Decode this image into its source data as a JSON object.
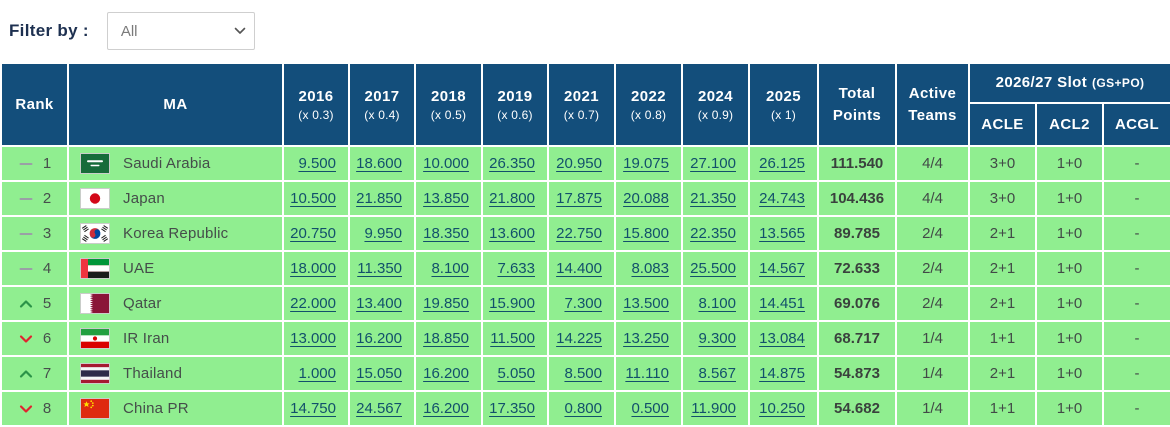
{
  "filter": {
    "label": "Filter by :",
    "selected": "All",
    "options": [
      "All"
    ]
  },
  "colors": {
    "header_bg": "#134E7B",
    "row_bg": "#90EE90",
    "score_link": "#12506B",
    "trend_up": "#2B9348",
    "trend_down": "#E0242F",
    "trend_same": "#9AA0A6"
  },
  "table": {
    "headers": {
      "rank": "Rank",
      "ma": "MA",
      "years": [
        {
          "year": "2016",
          "mult": "(x 0.3)"
        },
        {
          "year": "2017",
          "mult": "(x 0.4)"
        },
        {
          "year": "2018",
          "mult": "(x 0.5)"
        },
        {
          "year": "2019",
          "mult": "(x 0.6)"
        },
        {
          "year": "2021",
          "mult": "(x 0.7)"
        },
        {
          "year": "2022",
          "mult": "(x 0.8)"
        },
        {
          "year": "2024",
          "mult": "(x 0.9)"
        },
        {
          "year": "2025",
          "mult": "(x 1)"
        }
      ],
      "total": "Total Points",
      "active": "Active Teams",
      "slot_title": "2026/27 Slot",
      "slot_sub": "(GS+PO)",
      "slot_cols": [
        "ACLE",
        "ACL2",
        "ACGL"
      ]
    },
    "rows": [
      {
        "trend": "same",
        "rank": "1",
        "country": "Saudi Arabia",
        "flag": "saudi-arabia",
        "scores": [
          "9.500",
          "18.600",
          "10.000",
          "26.350",
          "20.950",
          "19.075",
          "27.100",
          "26.125"
        ],
        "total": "111.540",
        "active": "4/4",
        "acle": "3+0",
        "acl2": "1+0",
        "acgl": "-"
      },
      {
        "trend": "same",
        "rank": "2",
        "country": "Japan",
        "flag": "japan",
        "scores": [
          "10.500",
          "21.850",
          "13.850",
          "21.800",
          "17.875",
          "20.088",
          "21.350",
          "24.743"
        ],
        "total": "104.436",
        "active": "4/4",
        "acle": "3+0",
        "acl2": "1+0",
        "acgl": "-"
      },
      {
        "trend": "same",
        "rank": "3",
        "country": "Korea Republic",
        "flag": "korea-republic",
        "scores": [
          "20.750",
          "9.950",
          "18.350",
          "13.600",
          "22.750",
          "15.800",
          "22.350",
          "13.565"
        ],
        "total": "89.785",
        "active": "2/4",
        "acle": "2+1",
        "acl2": "1+0",
        "acgl": "-"
      },
      {
        "trend": "same",
        "rank": "4",
        "country": "UAE",
        "flag": "uae",
        "scores": [
          "18.000",
          "11.350",
          "8.100",
          "7.633",
          "14.400",
          "8.083",
          "25.500",
          "14.567"
        ],
        "total": "72.633",
        "active": "2/4",
        "acle": "2+1",
        "acl2": "1+0",
        "acgl": "-"
      },
      {
        "trend": "up",
        "rank": "5",
        "country": "Qatar",
        "flag": "qatar",
        "scores": [
          "22.000",
          "13.400",
          "19.850",
          "15.900",
          "7.300",
          "13.500",
          "8.100",
          "14.451"
        ],
        "total": "69.076",
        "active": "2/4",
        "acle": "2+1",
        "acl2": "1+0",
        "acgl": "-"
      },
      {
        "trend": "down",
        "rank": "6",
        "country": "IR Iran",
        "flag": "ir-iran",
        "scores": [
          "13.000",
          "16.200",
          "18.850",
          "11.500",
          "14.225",
          "13.250",
          "9.300",
          "13.084"
        ],
        "total": "68.717",
        "active": "1/4",
        "acle": "1+1",
        "acl2": "1+0",
        "acgl": "-"
      },
      {
        "trend": "up",
        "rank": "7",
        "country": "Thailand",
        "flag": "thailand",
        "scores": [
          "1.000",
          "15.050",
          "16.200",
          "5.050",
          "8.500",
          "11.110",
          "8.567",
          "14.875"
        ],
        "total": "54.873",
        "active": "1/4",
        "acle": "2+1",
        "acl2": "1+0",
        "acgl": "-"
      },
      {
        "trend": "down",
        "rank": "8",
        "country": "China PR",
        "flag": "china-pr",
        "scores": [
          "14.750",
          "24.567",
          "16.200",
          "17.350",
          "0.800",
          "0.500",
          "11.900",
          "10.250"
        ],
        "total": "54.682",
        "active": "1/4",
        "acle": "1+1",
        "acl2": "1+0",
        "acgl": "-"
      }
    ]
  }
}
